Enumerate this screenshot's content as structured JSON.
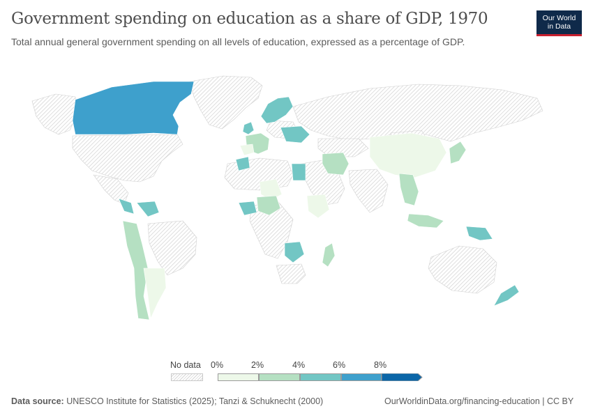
{
  "header": {
    "title": "Government spending on education as a share of GDP, 1970",
    "subtitle": "Total annual general government spending on all levels of education, expressed as a percentage of GDP.",
    "logo_line1": "Our World",
    "logo_line2": "in Data"
  },
  "legend": {
    "no_data_label": "No data",
    "ticks": [
      "0%",
      "2%",
      "4%",
      "6%",
      "8%"
    ],
    "bins": [
      {
        "range": "0–2%",
        "color": "#edf8e9"
      },
      {
        "range": "2–4%",
        "color": "#b5e0c2"
      },
      {
        "range": "4–6%",
        "color": "#72c6c4"
      },
      {
        "range": "6–8%",
        "color": "#3ea0cc"
      },
      {
        "range": "8%+",
        "color": "#0b66a8"
      }
    ]
  },
  "colors": {
    "no_data_hatch": "#d6d6d6",
    "border": "#ffffff",
    "title": "#4e4e4e",
    "logo_bg": "#0f2a4a",
    "logo_accent": "#c8202f"
  },
  "footer": {
    "source_label": "Data source:",
    "source_text": "UNESCO Institute for Statistics (2025); Tanzi & Schuknecht (2000)",
    "url": "OurWorldinData.org/financing-education | CC BY"
  }
}
